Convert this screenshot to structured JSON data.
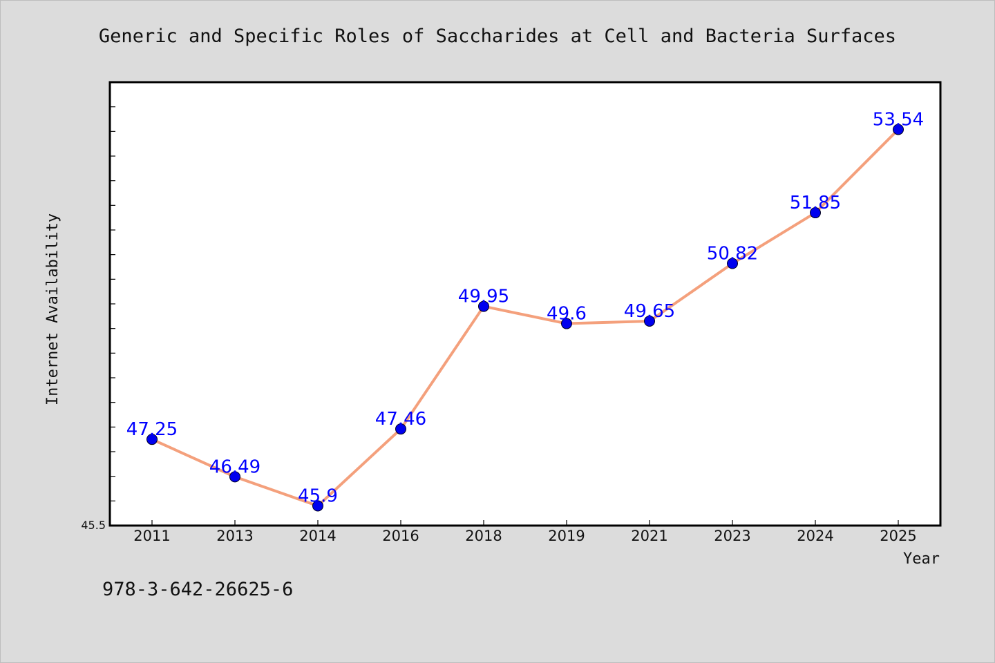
{
  "chart_data": {
    "type": "line",
    "title": "Generic and Specific Roles of Saccharides at Cell and Bacteria Surfaces",
    "xlabel": "Year",
    "ylabel": "Internet Availability",
    "categories": [
      "2011",
      "2013",
      "2014",
      "2016",
      "2018",
      "2019",
      "2021",
      "2023",
      "2024",
      "2025"
    ],
    "series": [
      {
        "values": [
          47.25,
          46.49,
          45.9,
          47.46,
          49.95,
          49.6,
          49.65,
          50.82,
          51.85,
          53.54
        ]
      }
    ],
    "value_labels": [
      "47.25",
      "46.49",
      "45.9",
      "47.46",
      "49.95",
      "49.6",
      "49.65",
      "50.82",
      "51.85",
      "53.54"
    ],
    "ylim": [
      45.5,
      54.5
    ],
    "y_min_label": "45.5",
    "grid": false,
    "legend": "none",
    "colors": {
      "line": "#f4a07c",
      "marker": "#0000ee",
      "label": "#0000ff",
      "plot_background": "#ffffff",
      "page_background": "#dcdcdc"
    }
  },
  "footer_text": "978-3-642-26625-6"
}
